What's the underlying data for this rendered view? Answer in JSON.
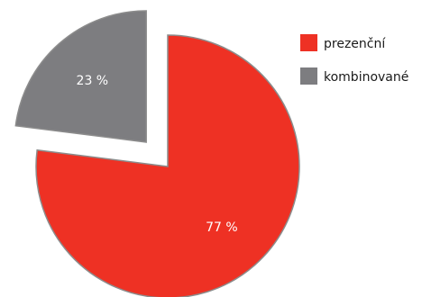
{
  "chart_data": {
    "type": "pie",
    "title": "",
    "legend_position": "top-right",
    "unit": "%",
    "slices": [
      {
        "label": "prezenční",
        "value": 77,
        "display": "77 %",
        "color": "#ee3124",
        "exploded": false
      },
      {
        "label": "kombinované",
        "value": 23,
        "display": "23 %",
        "color": "#7d7d80",
        "exploded": true
      }
    ]
  }
}
